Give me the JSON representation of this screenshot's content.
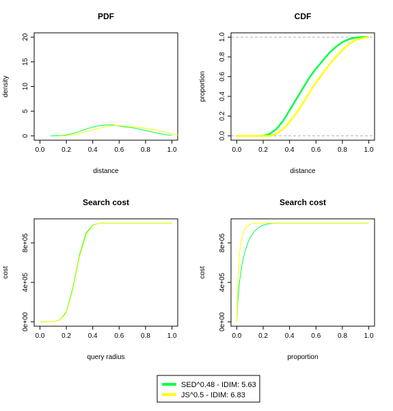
{
  "colors": {
    "green": "#00ff44",
    "yellow": "#ffff00"
  },
  "legend": [
    {
      "name": "SED^0.48 - IDIM: 5.63",
      "color": "#00ff44"
    },
    {
      "name": "JS^0.5 - IDIM: 6.83",
      "color": "#ffff00"
    }
  ],
  "chart_data": [
    {
      "id": "pdf",
      "type": "line",
      "title": "PDF",
      "xlabel": "distance",
      "ylabel": "density",
      "xlim": [
        0,
        1
      ],
      "ylim": [
        0,
        20
      ],
      "xticks": [
        0.0,
        0.2,
        0.4,
        0.6,
        0.8,
        1.0
      ],
      "xtick_labels": [
        "0.0",
        "0.2",
        "0.4",
        "0.6",
        "0.8",
        "1.0"
      ],
      "yticks": [
        0,
        5,
        10,
        15,
        20
      ],
      "ytick_labels": [
        "0",
        "5",
        "10",
        "15",
        "20"
      ],
      "series": [
        {
          "name": "SED^0.48 - IDIM: 5.63",
          "color": "#00ff44",
          "width": 1,
          "x": [
            0.08,
            0.15,
            0.2,
            0.25,
            0.3,
            0.35,
            0.4,
            0.45,
            0.5,
            0.55,
            0.6,
            0.65,
            0.7,
            0.75,
            0.8,
            0.85,
            0.9,
            0.95,
            1.0
          ],
          "y": [
            0.0,
            0.05,
            0.2,
            0.5,
            0.9,
            1.4,
            1.8,
            2.05,
            2.2,
            2.2,
            2.0,
            1.8,
            1.65,
            1.4,
            1.1,
            0.8,
            0.5,
            0.25,
            0.1
          ]
        },
        {
          "name": "JS^0.5 - IDIM: 6.83",
          "color": "#ffff00",
          "width": 1,
          "x": [
            0.15,
            0.2,
            0.25,
            0.3,
            0.35,
            0.4,
            0.45,
            0.5,
            0.55,
            0.6,
            0.65,
            0.7,
            0.75,
            0.8,
            0.85,
            0.9,
            0.95,
            1.0,
            1.05
          ],
          "y": [
            0.0,
            0.05,
            0.2,
            0.5,
            0.85,
            1.2,
            1.55,
            1.85,
            2.05,
            2.1,
            2.0,
            1.9,
            1.75,
            1.55,
            1.3,
            1.05,
            0.75,
            0.45,
            0.2
          ]
        }
      ]
    },
    {
      "id": "cdf",
      "type": "line",
      "title": "CDF",
      "xlabel": "distance",
      "ylabel": "proportion",
      "xlim": [
        0,
        1
      ],
      "ylim": [
        0,
        1
      ],
      "ref_lines": [
        0,
        1
      ],
      "xticks": [
        0.0,
        0.2,
        0.4,
        0.6,
        0.8,
        1.0
      ],
      "xtick_labels": [
        "0.0",
        "0.2",
        "0.4",
        "0.6",
        "0.8",
        "1.0"
      ],
      "yticks": [
        0.0,
        0.2,
        0.4,
        0.6,
        0.8,
        1.0
      ],
      "ytick_labels": [
        "0.0",
        "0.2",
        "0.4",
        "0.6",
        "0.8",
        "1.0"
      ],
      "series": [
        {
          "name": "SED^0.48 - IDIM: 5.63",
          "color": "#00ff44",
          "width": 2.5,
          "x": [
            0.0,
            0.2,
            0.25,
            0.3,
            0.35,
            0.4,
            0.45,
            0.5,
            0.55,
            0.6,
            0.65,
            0.7,
            0.75,
            0.8,
            0.85,
            0.9,
            0.95,
            1.0
          ],
          "y": [
            0.0,
            0.0,
            0.02,
            0.07,
            0.15,
            0.26,
            0.37,
            0.48,
            0.59,
            0.68,
            0.76,
            0.84,
            0.9,
            0.95,
            0.98,
            0.995,
            1.0,
            1.0
          ]
        },
        {
          "name": "JS^0.5 - IDIM: 6.83",
          "color": "#ffff00",
          "width": 2.5,
          "x": [
            0.0,
            0.25,
            0.3,
            0.35,
            0.4,
            0.45,
            0.5,
            0.55,
            0.6,
            0.65,
            0.7,
            0.75,
            0.8,
            0.85,
            0.9,
            0.95,
            1.0
          ],
          "y": [
            0.0,
            0.0,
            0.02,
            0.07,
            0.14,
            0.23,
            0.33,
            0.44,
            0.54,
            0.63,
            0.72,
            0.8,
            0.87,
            0.93,
            0.97,
            0.99,
            1.0
          ]
        }
      ]
    },
    {
      "id": "cost-radius",
      "type": "line",
      "title": "Search cost",
      "xlabel": "query radius",
      "ylabel": "cost",
      "xlim": [
        0,
        1
      ],
      "ylim": [
        0,
        1000000
      ],
      "xticks": [
        0.0,
        0.2,
        0.4,
        0.6,
        0.8,
        1.0
      ],
      "xtick_labels": [
        "0.0",
        "0.2",
        "0.4",
        "0.6",
        "0.8",
        "1.0"
      ],
      "yticks": [
        0,
        400000,
        800000
      ],
      "ytick_labels": [
        "0e+00",
        "4e+05",
        "8e+05"
      ],
      "series": [
        {
          "name": "SED^0.48 - IDIM: 5.63",
          "color": "#00ff44",
          "width": 1,
          "x": [
            0.0,
            0.1,
            0.15,
            0.2,
            0.25,
            0.3,
            0.35,
            0.4,
            0.45,
            0.5,
            1.0
          ],
          "y": [
            0,
            2000,
            20000,
            100000,
            350000,
            680000,
            900000,
            980000,
            1000000,
            1000000,
            1000000
          ]
        },
        {
          "name": "JS^0.5 - IDIM: 6.83",
          "color": "#ffff00",
          "width": 1,
          "x": [
            0.0,
            0.1,
            0.15,
            0.2,
            0.25,
            0.3,
            0.35,
            0.4,
            0.45,
            0.5,
            1.0
          ],
          "y": [
            0,
            2000,
            18000,
            90000,
            330000,
            660000,
            880000,
            975000,
            1000000,
            1000000,
            1000000
          ]
        }
      ]
    },
    {
      "id": "cost-proportion",
      "type": "line",
      "title": "Search cost",
      "xlabel": "proportion",
      "ylabel": "cost",
      "xlim": [
        0,
        1
      ],
      "ylim": [
        0,
        1000000
      ],
      "xticks": [
        0.0,
        0.2,
        0.4,
        0.6,
        0.8,
        1.0
      ],
      "xtick_labels": [
        "0.0",
        "0.2",
        "0.4",
        "0.6",
        "0.8",
        "1.0"
      ],
      "yticks": [
        0,
        400000,
        800000
      ],
      "ytick_labels": [
        "0e+00",
        "4e+05",
        "8e+05"
      ],
      "series": [
        {
          "name": "SED^0.48 - IDIM: 5.63",
          "color": "#00ff44",
          "width": 1,
          "x": [
            0.0,
            0.01,
            0.02,
            0.04,
            0.06,
            0.08,
            0.1,
            0.13,
            0.16,
            0.2,
            0.25,
            0.3,
            0.4,
            1.0
          ],
          "y": [
            0,
            250000,
            400000,
            580000,
            700000,
            790000,
            850000,
            910000,
            950000,
            980000,
            995000,
            1000000,
            1000000,
            1000000
          ]
        },
        {
          "name": "JS^0.5 - IDIM: 6.83",
          "color": "#ffff00",
          "width": 1,
          "x": [
            0.0,
            0.01,
            0.02,
            0.03,
            0.05,
            0.07,
            0.1,
            0.13,
            0.16,
            0.2,
            1.0
          ],
          "y": [
            0,
            450000,
            680000,
            800000,
            910000,
            960000,
            990000,
            1000000,
            1000000,
            1000000,
            1000000
          ]
        }
      ]
    }
  ]
}
